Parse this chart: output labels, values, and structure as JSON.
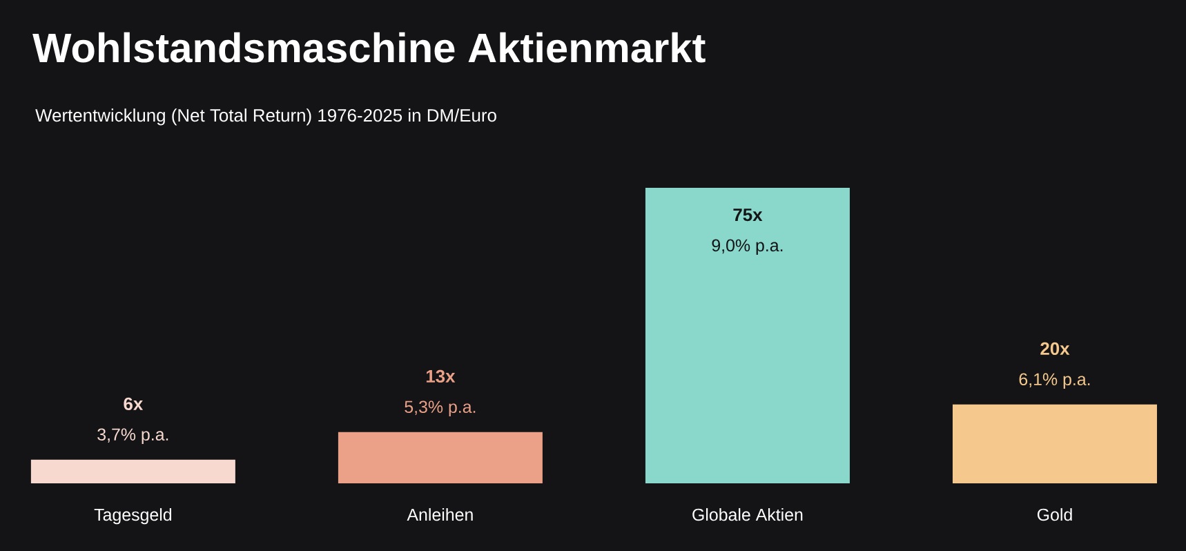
{
  "chart_data": {
    "type": "bar",
    "title": "Wohlstandsmaschine Aktienmarkt",
    "subtitle": "Wertentwicklung (Net Total Return) 1976-2025 in DM/Euro",
    "categories": [
      "Tagesgeld",
      "Anleihen",
      "Globale Aktien",
      "Gold"
    ],
    "values": [
      6,
      13,
      75,
      20
    ],
    "colors": [
      "#f7d9d0",
      "#eba088",
      "#8ad8cb",
      "#f5c98e"
    ],
    "value_labels": [
      "6x",
      "13x",
      "75x",
      "20x"
    ],
    "annotations": [
      "3,7% p.a.",
      "5,3% p.a.",
      "9,0% p.a.",
      "6,1% p.a."
    ]
  }
}
